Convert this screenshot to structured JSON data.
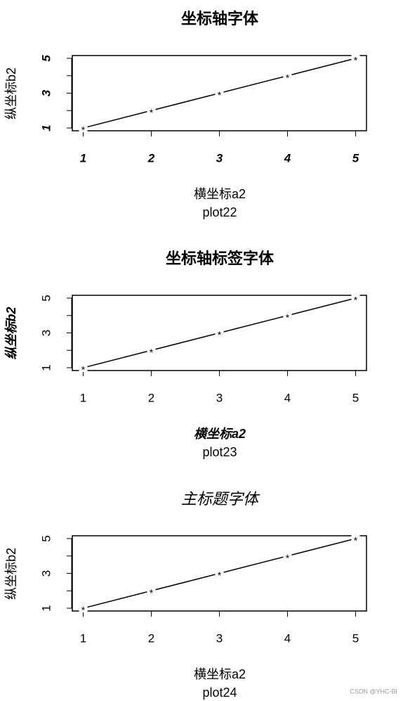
{
  "chart_data": [
    {
      "type": "line",
      "title": "坐标轴字体",
      "xlabel": "横坐标a2",
      "ylabel": "纵坐标b2",
      "subtitle": "plot22",
      "x": [
        1,
        2,
        3,
        4,
        5
      ],
      "values": [
        1,
        2,
        3,
        4,
        5
      ],
      "marker": "*",
      "color": "#000000",
      "xlim": [
        0.84,
        5.16
      ],
      "ylim": [
        0.84,
        5.16
      ],
      "xticks": [
        1,
        2,
        3,
        4,
        5
      ],
      "yticks": [
        1,
        3,
        5
      ],
      "y_minor_ticks": [
        2,
        4
      ],
      "title_style": "bold",
      "tick_style": "bold italic",
      "label_style": "normal"
    },
    {
      "type": "line",
      "title": "坐标轴标签字体",
      "xlabel": "横坐标a2",
      "ylabel": "纵坐标b2",
      "subtitle": "plot23",
      "x": [
        1,
        2,
        3,
        4,
        5
      ],
      "values": [
        1,
        2,
        3,
        4,
        5
      ],
      "marker": "*",
      "color": "#000000",
      "xlim": [
        0.84,
        5.16
      ],
      "ylim": [
        0.84,
        5.16
      ],
      "xticks": [
        1,
        2,
        3,
        4,
        5
      ],
      "yticks": [
        1,
        3,
        5
      ],
      "y_minor_ticks": [
        2,
        4
      ],
      "title_style": "bold",
      "tick_style": "normal",
      "label_style": "bold italic"
    },
    {
      "type": "line",
      "title": "主标题字体",
      "xlabel": "横坐标a2",
      "ylabel": "纵坐标b2",
      "subtitle": "plot24",
      "x": [
        1,
        2,
        3,
        4,
        5
      ],
      "values": [
        1,
        2,
        3,
        4,
        5
      ],
      "marker": "*",
      "color": "#000000",
      "xlim": [
        0.84,
        5.16
      ],
      "ylim": [
        0.84,
        5.16
      ],
      "xticks": [
        1,
        2,
        3,
        4,
        5
      ],
      "yticks": [
        1,
        3,
        5
      ],
      "y_minor_ticks": [
        2,
        4
      ],
      "title_style": "italic",
      "tick_style": "normal",
      "label_style": "normal"
    }
  ],
  "watermark": "CSDN @YHC-BI"
}
